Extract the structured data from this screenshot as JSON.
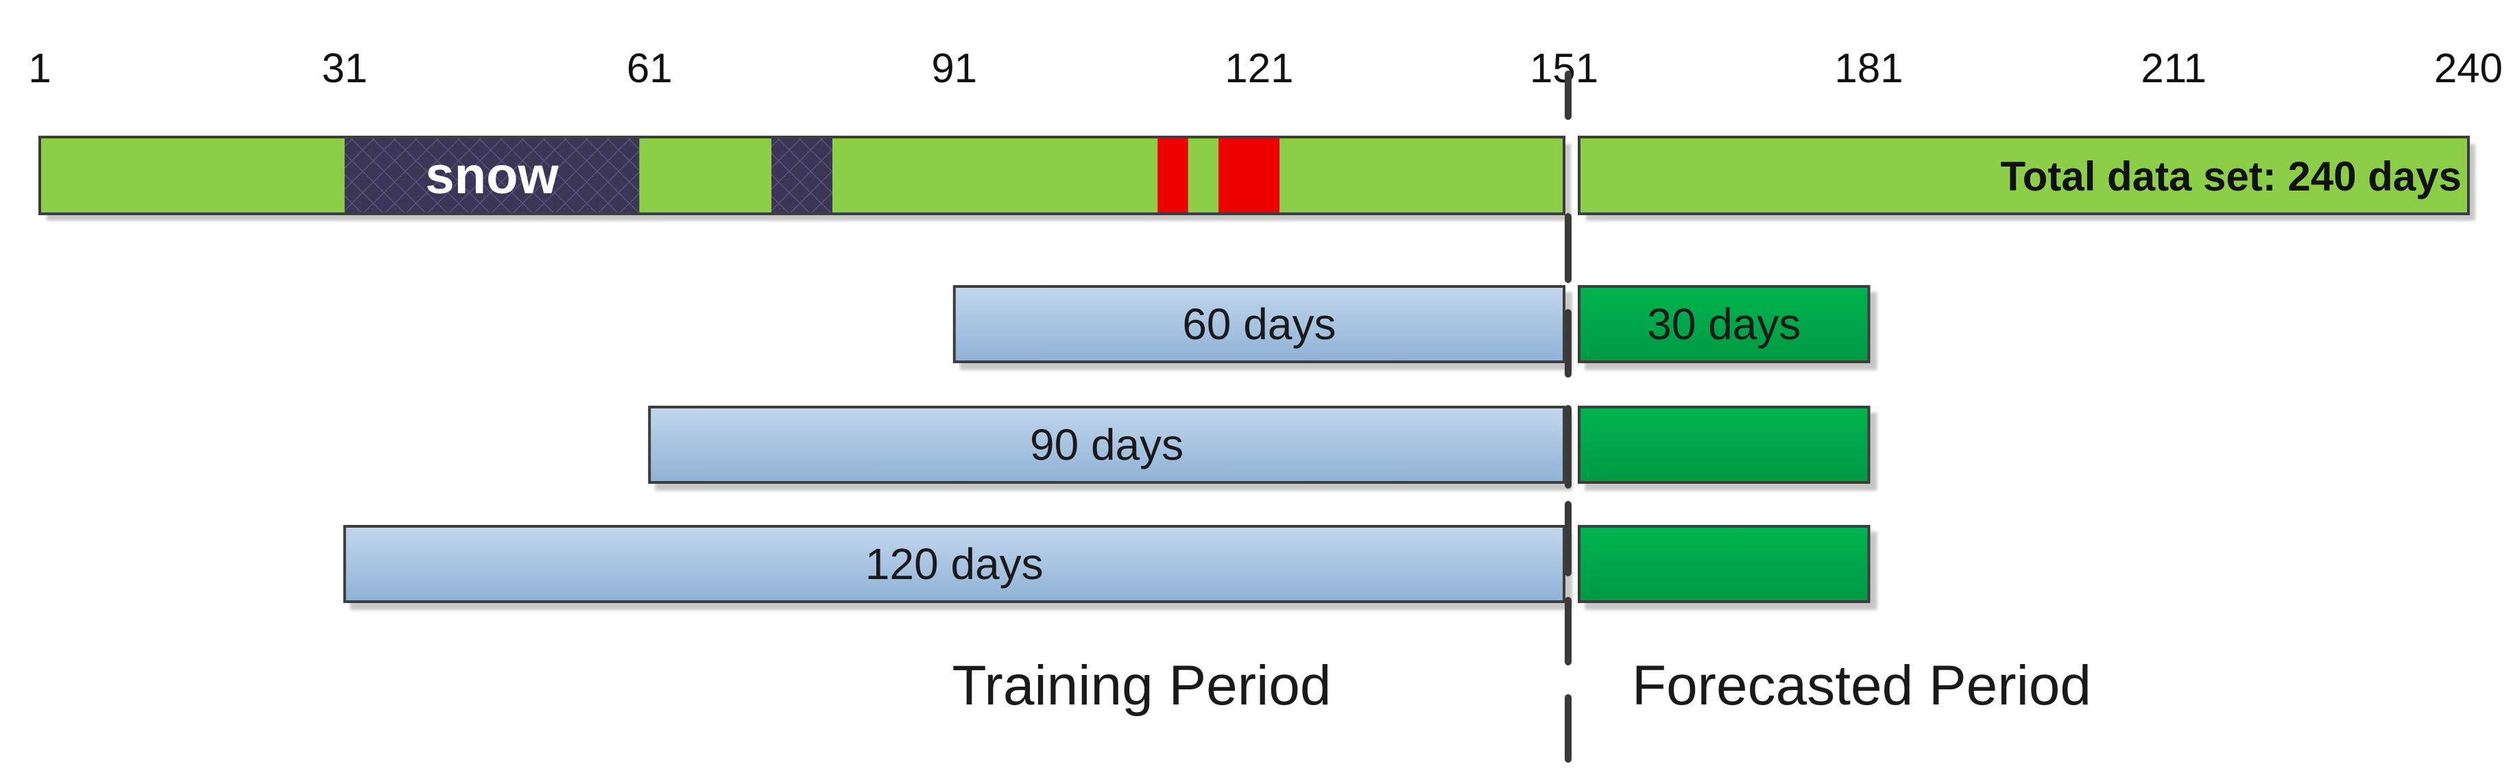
{
  "timeline": {
    "ticks": [
      "1",
      "31",
      "61",
      "91",
      "121",
      "151",
      "181",
      "211",
      "240"
    ],
    "total_label": "Total data set: 240 days",
    "snow_label": "snow",
    "snow_blocks": [
      [
        31,
        60
      ],
      [
        73,
        79
      ]
    ],
    "anomaly_blocks": [
      [
        111,
        114
      ],
      [
        117,
        123
      ]
    ]
  },
  "windows": [
    {
      "training_label": "60 days",
      "forecast_label": "30 days"
    },
    {
      "training_label": "90 days",
      "forecast_label": ""
    },
    {
      "training_label": "120 days",
      "forecast_label": ""
    }
  ],
  "periods": {
    "training": "Training Period",
    "forecast": "Forecasted Period"
  },
  "colors": {
    "timeline_green": "#8cce46",
    "snow": "#3b3656",
    "anomaly": "#ee0000",
    "training_bar_top": "#c2d7ec",
    "training_bar_bottom": "#8fb2d6",
    "forecast_bar_top": "#00b450",
    "forecast_bar_bottom": "#009a42",
    "outline": "#3d3d3d"
  }
}
